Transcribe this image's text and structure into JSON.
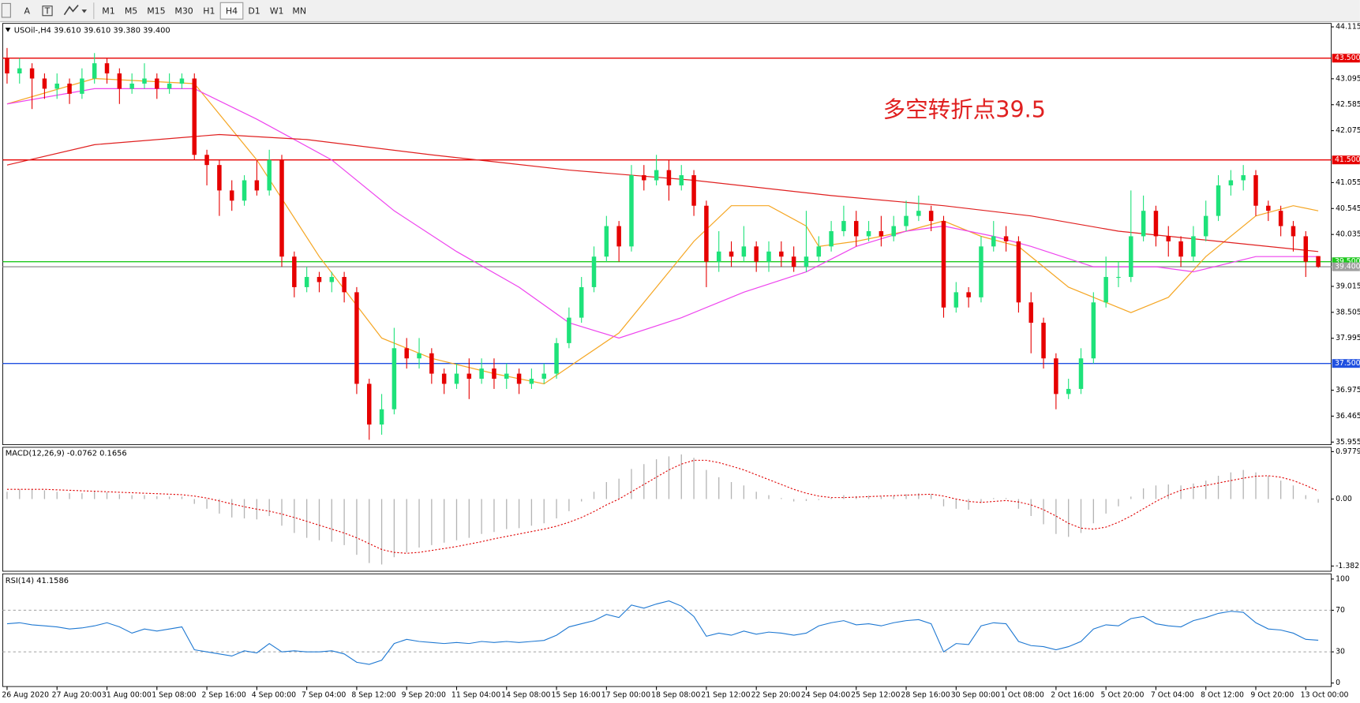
{
  "toolbar": {
    "tools": [
      "A",
      "T"
    ],
    "timeframes": [
      "M1",
      "M5",
      "M15",
      "M30",
      "H1",
      "H4",
      "D1",
      "W1",
      "MN"
    ],
    "selected": 5
  },
  "chart_data": [
    {
      "type": "candlestick",
      "title": "USOil-,H4  39.610 39.610 39.380 39.400",
      "annotation": "多空转折点39.5",
      "up_color": "#1ee27a",
      "down_color": "#e60000",
      "ylim": [
        35.955,
        44.115
      ],
      "yticks": [
        44.115,
        43.095,
        42.585,
        42.075,
        41.055,
        40.545,
        40.035,
        39.015,
        38.505,
        37.995,
        36.975,
        36.465,
        35.955
      ],
      "open": [
        43.5,
        43.2,
        43.3,
        43.1,
        42.9,
        43.0,
        42.8,
        43.1,
        43.4,
        43.2,
        42.9,
        43.0,
        43.1,
        42.9,
        43.0,
        43.1,
        41.6,
        41.4,
        40.9,
        40.7,
        41.1,
        40.9,
        41.5,
        39.6,
        39.0,
        39.2,
        39.1,
        39.2,
        38.9,
        37.1,
        36.3,
        36.6,
        37.8,
        37.6,
        37.7,
        37.3,
        37.1,
        37.3,
        37.2,
        37.4,
        37.2,
        37.3,
        37.1,
        37.2,
        37.3,
        37.9,
        38.4,
        39.0,
        39.6,
        40.2,
        39.8,
        41.2,
        41.1,
        41.3,
        41.0,
        41.2,
        40.6,
        39.5,
        39.7,
        39.6,
        39.8,
        39.5,
        39.7,
        39.6,
        39.4,
        39.6,
        39.8,
        40.1,
        40.3,
        40.0,
        40.1,
        40.0,
        40.2,
        40.4,
        40.5,
        40.3,
        38.6,
        38.9,
        38.8,
        39.8,
        40.0,
        39.9,
        38.7,
        38.3,
        37.6,
        36.9,
        37.0,
        37.6,
        38.7,
        39.2,
        39.2,
        40.0,
        40.5,
        40.0,
        39.9,
        39.6,
        40.0,
        40.4,
        41.0,
        41.1,
        41.2,
        40.6,
        40.5,
        40.2,
        40.0,
        39.61
      ],
      "high": [
        43.7,
        43.5,
        43.4,
        43.2,
        43.2,
        43.1,
        43.3,
        43.6,
        43.5,
        43.3,
        43.2,
        43.4,
        43.2,
        43.2,
        43.2,
        43.2,
        41.7,
        41.5,
        41.1,
        41.2,
        41.5,
        41.7,
        41.6,
        39.7,
        39.4,
        39.3,
        39.3,
        39.3,
        39.0,
        37.2,
        36.9,
        38.2,
        38.0,
        38.0,
        37.8,
        37.4,
        37.5,
        37.6,
        37.6,
        37.6,
        37.5,
        37.4,
        37.4,
        37.5,
        38.0,
        38.6,
        39.2,
        39.8,
        40.4,
        40.3,
        41.4,
        41.4,
        41.6,
        41.5,
        41.4,
        41.3,
        40.7,
        40.1,
        39.9,
        40.2,
        39.9,
        39.9,
        39.9,
        39.8,
        40.5,
        40.0,
        40.3,
        40.6,
        40.5,
        40.3,
        40.4,
        40.4,
        40.7,
        40.8,
        40.6,
        40.4,
        39.1,
        39.0,
        40.0,
        40.3,
        40.2,
        40.0,
        38.9,
        38.4,
        37.7,
        37.2,
        37.8,
        38.9,
        39.6,
        39.5,
        40.9,
        40.8,
        40.6,
        40.2,
        40.0,
        40.2,
        40.7,
        41.2,
        41.3,
        41.4,
        41.3,
        40.7,
        40.6,
        40.3,
        40.1,
        39.61
      ],
      "low": [
        43.0,
        43.0,
        42.5,
        42.7,
        42.7,
        42.6,
        42.7,
        43.0,
        43.0,
        42.6,
        42.8,
        42.9,
        42.7,
        42.8,
        42.9,
        41.5,
        41.0,
        40.4,
        40.5,
        40.6,
        40.8,
        40.8,
        39.4,
        38.8,
        38.9,
        38.9,
        38.9,
        38.7,
        36.9,
        36.0,
        36.1,
        36.5,
        37.4,
        37.4,
        37.1,
        36.9,
        37.0,
        36.8,
        37.1,
        37.0,
        37.0,
        36.9,
        37.0,
        37.1,
        37.2,
        37.8,
        38.3,
        38.9,
        39.5,
        39.5,
        39.7,
        40.9,
        41.0,
        40.7,
        40.9,
        40.4,
        39.0,
        39.3,
        39.4,
        39.5,
        39.3,
        39.3,
        39.4,
        39.3,
        39.3,
        39.5,
        39.7,
        40.0,
        39.8,
        39.9,
        39.8,
        39.9,
        40.1,
        40.3,
        40.1,
        38.4,
        38.5,
        38.6,
        38.7,
        39.7,
        39.7,
        38.5,
        37.7,
        37.4,
        36.6,
        36.8,
        36.9,
        37.5,
        38.6,
        39.0,
        39.1,
        39.9,
        39.8,
        39.6,
        39.4,
        39.5,
        39.9,
        40.3,
        40.8,
        40.9,
        40.4,
        40.3,
        40.0,
        39.7,
        39.2,
        39.38
      ],
      "close": [
        43.2,
        43.3,
        43.1,
        42.9,
        43.0,
        42.8,
        43.1,
        43.4,
        43.2,
        42.9,
        43.0,
        43.1,
        42.9,
        43.0,
        43.1,
        41.6,
        41.4,
        40.9,
        40.7,
        41.1,
        40.9,
        41.5,
        39.6,
        39.0,
        39.2,
        39.1,
        39.2,
        38.9,
        37.1,
        36.3,
        36.6,
        37.8,
        37.6,
        37.7,
        37.3,
        37.1,
        37.3,
        37.2,
        37.4,
        37.2,
        37.3,
        37.1,
        37.2,
        37.3,
        37.9,
        38.4,
        39.0,
        39.6,
        40.2,
        39.8,
        41.2,
        41.1,
        41.3,
        41.0,
        41.2,
        40.6,
        39.5,
        39.7,
        39.6,
        39.8,
        39.5,
        39.7,
        39.6,
        39.4,
        39.6,
        39.8,
        40.1,
        40.3,
        40.0,
        40.1,
        40.0,
        40.2,
        40.4,
        40.5,
        40.3,
        38.6,
        38.9,
        38.8,
        39.8,
        40.0,
        39.9,
        38.7,
        38.3,
        37.6,
        36.9,
        37.0,
        37.6,
        38.7,
        39.2,
        39.2,
        40.0,
        40.5,
        40.0,
        39.9,
        39.6,
        40.0,
        40.4,
        41.0,
        41.1,
        41.2,
        40.6,
        40.5,
        40.2,
        40.0,
        39.5,
        39.4
      ],
      "series": [
        {
          "color": "#f5a623",
          "x": [
            0,
            7,
            15,
            20,
            25,
            30,
            34,
            39,
            43,
            46,
            49,
            52,
            55,
            58,
            61,
            64,
            65,
            68,
            72,
            75,
            78,
            81,
            85,
            90,
            93,
            96,
            100,
            103,
            105
          ],
          "values": [
            42.6,
            43.1,
            43.0,
            41.5,
            39.6,
            38.0,
            37.6,
            37.3,
            37.1,
            37.6,
            38.1,
            39.0,
            39.9,
            40.6,
            40.6,
            40.2,
            39.8,
            39.9,
            40.1,
            40.3,
            40.0,
            39.8,
            39.0,
            38.5,
            38.8,
            39.6,
            40.4,
            40.6,
            40.5
          ]
        },
        {
          "color": "#ee44ee",
          "x": [
            0,
            7,
            15,
            20,
            26,
            31,
            36,
            41,
            45,
            49,
            54,
            59,
            64,
            68,
            72,
            75,
            79,
            82,
            87,
            92,
            95,
            100,
            105
          ],
          "values": [
            42.6,
            42.9,
            42.9,
            42.3,
            41.5,
            40.5,
            39.7,
            39.0,
            38.3,
            38.0,
            38.4,
            38.9,
            39.3,
            39.8,
            40.1,
            40.2,
            40.0,
            39.8,
            39.4,
            39.4,
            39.3,
            39.6,
            39.6
          ]
        },
        {
          "color": "#e02020",
          "x": [
            0,
            7,
            17,
            24,
            34,
            45,
            55,
            66,
            75,
            82,
            89,
            97,
            105
          ],
          "values": [
            41.4,
            41.8,
            42.0,
            41.9,
            41.6,
            41.3,
            41.1,
            40.8,
            40.6,
            40.4,
            40.1,
            39.9,
            39.7
          ]
        }
      ],
      "levels": [
        {
          "value": 43.5,
          "label": "43.500",
          "color": "#e60000"
        },
        {
          "value": 41.5,
          "label": "41.500",
          "color": "#e60000"
        },
        {
          "value": 39.5,
          "label": "39.500",
          "color": "#1ec81e"
        },
        {
          "value": 39.4,
          "label": "39.400",
          "color": "#a0a0a0"
        },
        {
          "value": 37.5,
          "label": "37.500",
          "color": "#2050e0"
        }
      ]
    },
    {
      "type": "bar",
      "title": "MACD(12,26,9) -0.0762 0.1656",
      "color": "#b4b4b4",
      "ylim": [
        -1.382,
        0.9779
      ],
      "yticks": [
        0.9779,
        {
          "value": 0,
          "label": "0.00"
        },
        -1.382
      ],
      "values": [
        0.15,
        0.2,
        0.2,
        0.18,
        0.15,
        0.12,
        0.12,
        0.15,
        0.14,
        0.1,
        0.08,
        0.08,
        0.06,
        0.05,
        0.05,
        -0.1,
        -0.2,
        -0.3,
        -0.38,
        -0.4,
        -0.42,
        -0.35,
        -0.55,
        -0.7,
        -0.8,
        -0.85,
        -0.88,
        -0.95,
        -1.15,
        -1.32,
        -1.35,
        -1.2,
        -1.1,
        -1.0,
        -0.95,
        -0.9,
        -0.85,
        -0.8,
        -0.72,
        -0.68,
        -0.62,
        -0.6,
        -0.55,
        -0.5,
        -0.4,
        -0.25,
        -0.05,
        0.15,
        0.35,
        0.42,
        0.62,
        0.72,
        0.82,
        0.88,
        0.92,
        0.85,
        0.6,
        0.45,
        0.35,
        0.28,
        0.15,
        0.08,
        0.02,
        -0.05,
        -0.04,
        -0.02,
        0.03,
        0.08,
        0.06,
        0.07,
        0.05,
        0.07,
        0.1,
        0.12,
        0.1,
        -0.15,
        -0.2,
        -0.22,
        -0.08,
        0.02,
        0.02,
        -0.2,
        -0.35,
        -0.52,
        -0.72,
        -0.78,
        -0.7,
        -0.5,
        -0.3,
        -0.15,
        0.05,
        0.22,
        0.28,
        0.3,
        0.28,
        0.32,
        0.38,
        0.48,
        0.55,
        0.6,
        0.55,
        0.48,
        0.38,
        0.28,
        0.08,
        -0.0762
      ],
      "signal": {
        "color": "#e00000",
        "values": [
          0.2,
          0.2,
          0.2,
          0.2,
          0.19,
          0.18,
          0.17,
          0.16,
          0.15,
          0.14,
          0.13,
          0.12,
          0.11,
          0.1,
          0.09,
          0.06,
          0.02,
          -0.04,
          -0.1,
          -0.16,
          -0.21,
          -0.25,
          -0.31,
          -0.38,
          -0.46,
          -0.54,
          -0.62,
          -0.7,
          -0.8,
          -0.92,
          -1.04,
          -1.1,
          -1.12,
          -1.1,
          -1.06,
          -1.02,
          -0.98,
          -0.93,
          -0.88,
          -0.82,
          -0.77,
          -0.72,
          -0.67,
          -0.62,
          -0.56,
          -0.48,
          -0.38,
          -0.26,
          -0.12,
          0.0,
          0.15,
          0.3,
          0.45,
          0.6,
          0.72,
          0.8,
          0.8,
          0.75,
          0.68,
          0.6,
          0.5,
          0.4,
          0.3,
          0.2,
          0.12,
          0.06,
          0.03,
          0.03,
          0.04,
          0.05,
          0.06,
          0.07,
          0.08,
          0.09,
          0.1,
          0.06,
          0.0,
          -0.05,
          -0.07,
          -0.05,
          -0.03,
          -0.06,
          -0.12,
          -0.22,
          -0.35,
          -0.5,
          -0.6,
          -0.62,
          -0.58,
          -0.48,
          -0.35,
          -0.2,
          -0.05,
          0.08,
          0.18,
          0.24,
          0.28,
          0.33,
          0.38,
          0.43,
          0.47,
          0.48,
          0.45,
          0.38,
          0.28,
          0.1656
        ]
      }
    },
    {
      "type": "line",
      "title": "RSI(14) 41.1586",
      "color": "#1e78d2",
      "ylim": [
        0,
        100
      ],
      "yticks": [
        100,
        70,
        30,
        0
      ],
      "values": [
        57,
        58,
        56,
        55,
        54,
        52,
        53,
        55,
        58,
        54,
        48,
        52,
        50,
        52,
        54,
        32,
        30,
        28,
        26,
        31,
        29,
        38,
        30,
        31,
        30,
        30,
        31,
        28,
        20,
        18,
        22,
        38,
        42,
        40,
        39,
        38,
        39,
        38,
        40,
        39,
        40,
        39,
        40,
        41,
        46,
        54,
        57,
        60,
        66,
        63,
        75,
        72,
        76,
        79,
        74,
        64,
        45,
        48,
        46,
        50,
        47,
        49,
        48,
        46,
        48,
        55,
        58,
        60,
        56,
        57,
        55,
        58,
        60,
        61,
        57,
        30,
        38,
        37,
        55,
        58,
        57,
        40,
        36,
        35,
        32,
        35,
        40,
        52,
        56,
        55,
        62,
        64,
        57,
        55,
        54,
        60,
        63,
        67,
        69,
        68,
        58,
        52,
        51,
        48,
        42,
        41.1586
      ],
      "xticks": [
        {
          "value": 0,
          "label": "26 Aug 2020"
        },
        {
          "value": 4,
          "label": "27 Aug 20:00"
        },
        {
          "value": 8,
          "label": "31 Aug 00:00"
        },
        {
          "value": 12,
          "label": "1 Sep 08:00"
        },
        {
          "value": 16,
          "label": "2 Sep 16:00"
        },
        {
          "value": 20,
          "label": "4 Sep 00:00"
        },
        {
          "value": 24,
          "label": "7 Sep 04:00"
        },
        {
          "value": 28,
          "label": "8 Sep 12:00"
        },
        {
          "value": 32,
          "label": "9 Sep 20:00"
        },
        {
          "value": 36,
          "label": "11 Sep 04:00"
        },
        {
          "value": 40,
          "label": "14 Sep 08:00"
        },
        {
          "value": 44,
          "label": "15 Sep 16:00"
        },
        {
          "value": 48,
          "label": "17 Sep 00:00"
        },
        {
          "value": 52,
          "label": "18 Sep 08:00"
        },
        {
          "value": 56,
          "label": "21 Sep 12:00"
        },
        {
          "value": 60,
          "label": "22 Sep 20:00"
        },
        {
          "value": 64,
          "label": "24 Sep 04:00"
        },
        {
          "value": 68,
          "label": "25 Sep 12:00"
        },
        {
          "value": 72,
          "label": "28 Sep 16:00"
        },
        {
          "value": 76,
          "label": "30 Sep 00:00"
        },
        {
          "value": 80,
          "label": "1 Oct 08:00"
        },
        {
          "value": 84,
          "label": "2 Oct 16:00"
        },
        {
          "value": 88,
          "label": "5 Oct 20:00"
        },
        {
          "value": 92,
          "label": "7 Oct 04:00"
        },
        {
          "value": 96,
          "label": "8 Oct 12:00"
        },
        {
          "value": 100,
          "label": "9 Oct 20:00"
        },
        {
          "value": 104,
          "label": "13 Oct 00:00"
        }
      ]
    }
  ]
}
